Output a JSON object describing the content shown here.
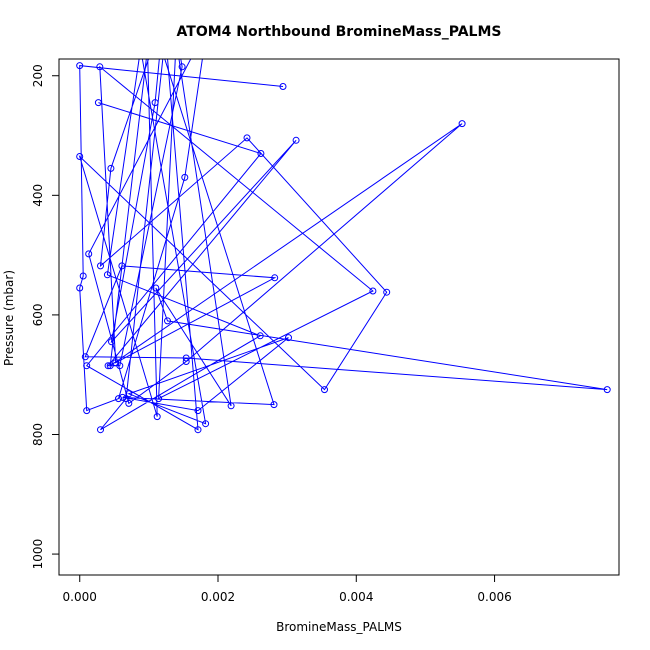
{
  "chart_data": {
    "type": "line",
    "title": "ATOM4 Northbound BromineMass_PALMS",
    "xlabel": "BromineMass_PALMS",
    "ylabel": "Pressure (mbar)",
    "xlim": [
      -0.0003,
      0.0078
    ],
    "ylim": [
      1035,
      172
    ],
    "y_reversed": true,
    "grid": false,
    "x_ticks": [
      {
        "value": 0.0,
        "label": "0.000"
      },
      {
        "value": 0.002,
        "label": "0.002"
      },
      {
        "value": 0.004,
        "label": "0.004"
      },
      {
        "value": 0.006,
        "label": "0.006"
      }
    ],
    "y_ticks": [
      {
        "value": 200,
        "label": "200"
      },
      {
        "value": 400,
        "label": "400"
      },
      {
        "value": 600,
        "label": "600"
      },
      {
        "value": 800,
        "label": "800"
      },
      {
        "value": 1000,
        "label": "1000"
      }
    ],
    "series": [
      {
        "color": "#0000ff",
        "x": [
          0.00294,
          0.0,
          5e-05,
          0.0,
          0.0001,
          0.00056,
          0.00152,
          0.00184,
          0.00013,
          0.00071,
          0.00154,
          0.00553,
          0.00044,
          0.00098,
          0.00112,
          0.0,
          0.00354,
          0.00444,
          0.00242,
          0.0003,
          0.00045,
          0.00109,
          0.00142,
          0.00219,
          0.0011,
          0.00127,
          0.00763,
          0.00154,
          8e-05,
          0.00061,
          0.00282,
          0.00052,
          0.00029,
          0.00424,
          0.00114,
          0.0014,
          0.00148,
          0.00058,
          0.00041,
          0.00313,
          0.00046,
          0.00109,
          0.00117,
          0.00281,
          0.00062,
          0.00171,
          0.00302,
          0.00071,
          0.00182,
          0.00088,
          0.0004,
          0.00261,
          0.0003,
          0.00067,
          0.00124,
          0.00171,
          0.0001,
          0.00262,
          0.00027
        ],
        "y": [
          218,
          183,
          535,
          555,
          760,
          740,
          370,
          120,
          498,
          748,
          678,
          280,
          685,
          155,
          770,
          335,
          725,
          562,
          304,
          518,
          355,
          140,
          160,
          752,
          555,
          610,
          725,
          672,
          670,
          518,
          538,
          680,
          185,
          560,
          740,
          130,
          185,
          685,
          685,
          308,
          645,
          245,
          150,
          750,
          738,
          760,
          638,
          732,
          782,
          155,
          533,
          635,
          792,
          740,
          130,
          792,
          685,
          330,
          245
        ]
      }
    ]
  }
}
